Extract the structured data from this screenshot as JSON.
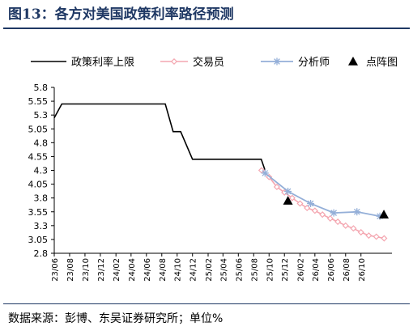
{
  "title": "图13：各方对美国政策利率路径预测",
  "source": "数据来源：彭博、东吴证券研究所；单位%",
  "colors": {
    "policy": "#000000",
    "trader": "#f4a6b0",
    "analyst": "#94afd8",
    "dots": "#000000",
    "title": "#1f3864"
  },
  "chart_data": {
    "type": "line",
    "title": "图13：各方对美国政策利率路径预测",
    "xlabel": "",
    "ylabel": "",
    "ylim": [
      2.8,
      5.8
    ],
    "yticks": [
      "2.8",
      "3.05",
      "3.3",
      "3.55",
      "3.8",
      "4.05",
      "4.3",
      "4.55",
      "4.8",
      "5.05",
      "5.3",
      "5.55",
      "5.8"
    ],
    "x_tick_labels": [
      "23/06",
      "23/08",
      "23/10",
      "23/12",
      "24/02",
      "24/04",
      "24/06",
      "24/08",
      "24/10",
      "24/12",
      "25/02",
      "25/04",
      "25/06",
      "25/08",
      "25/10",
      "25/12",
      "26/02",
      "26/04",
      "26/06",
      "26/08",
      "26/10"
    ],
    "legend_position": "top",
    "grid": false,
    "series": [
      {
        "name": "政策利率上限",
        "style": "line",
        "points": [
          [
            "2023-06-01",
            5.25
          ],
          [
            "2023-07-01",
            5.5
          ],
          [
            "2024-08-15",
            5.5
          ],
          [
            "2024-09-15",
            5.0
          ],
          [
            "2024-10-15",
            5.0
          ],
          [
            "2024-12-01",
            4.5
          ],
          [
            "2025-08-31",
            4.5
          ],
          [
            "2025-09-15",
            4.3
          ]
        ]
      },
      {
        "name": "交易员",
        "style": "line-diamond",
        "points": [
          [
            "2025-09-01",
            4.3
          ],
          [
            "2025-10-01",
            4.18
          ],
          [
            "2025-11-01",
            4.0
          ],
          [
            "2025-12-01",
            3.9
          ],
          [
            "2026-01-01",
            3.8
          ],
          [
            "2026-02-01",
            3.7
          ],
          [
            "2026-03-01",
            3.62
          ],
          [
            "2026-04-01",
            3.57
          ],
          [
            "2026-05-01",
            3.5
          ],
          [
            "2026-06-01",
            3.43
          ],
          [
            "2026-07-01",
            3.37
          ],
          [
            "2026-08-01",
            3.3
          ],
          [
            "2026-09-01",
            3.25
          ],
          [
            "2026-10-01",
            3.18
          ],
          [
            "2026-11-01",
            3.12
          ],
          [
            "2026-12-01",
            3.1
          ],
          [
            "2027-01-01",
            3.07
          ]
        ]
      },
      {
        "name": "分析师",
        "style": "line-star",
        "points": [
          [
            "2025-09-15",
            4.25
          ],
          [
            "2025-12-15",
            3.92
          ],
          [
            "2026-03-15",
            3.7
          ],
          [
            "2026-06-15",
            3.53
          ],
          [
            "2026-09-15",
            3.55
          ],
          [
            "2026-12-15",
            3.47
          ]
        ]
      },
      {
        "name": "点阵图",
        "style": "triangle",
        "points": [
          [
            "2025-12-15",
            3.75
          ],
          [
            "2026-12-31",
            3.5
          ]
        ]
      }
    ]
  }
}
